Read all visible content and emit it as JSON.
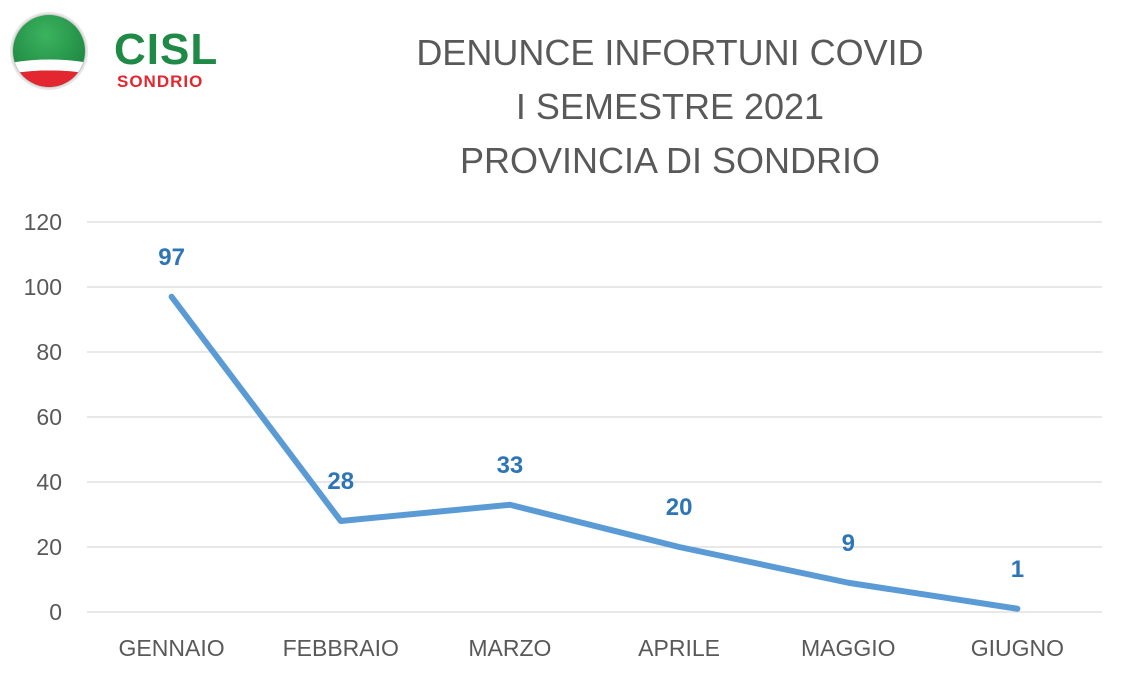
{
  "logo": {
    "name": "CISL",
    "subtitle": "SONDRIO"
  },
  "colors": {
    "line": "#5b9bd5",
    "data_label": "#2e75b6",
    "grid": "#d9d9d9",
    "text": "#595959",
    "logo_green": "#1f8a45",
    "logo_red": "#e3262f"
  },
  "chart_data": {
    "type": "line",
    "title": [
      "DENUNCE INFORTUNI COVID",
      "I SEMESTRE 2021",
      "PROVINCIA DI SONDRIO"
    ],
    "categories": [
      "GENNAIO",
      "FEBBRAIO",
      "MARZO",
      "APRILE",
      "MAGGIO",
      "GIUGNO"
    ],
    "series": [
      {
        "values": [
          97,
          28,
          33,
          20,
          9,
          1
        ]
      }
    ],
    "ylim": [
      0,
      120
    ],
    "yticks": [
      0,
      20,
      40,
      60,
      80,
      100,
      120
    ],
    "grid": true,
    "data_labels": true,
    "legend": "none"
  }
}
